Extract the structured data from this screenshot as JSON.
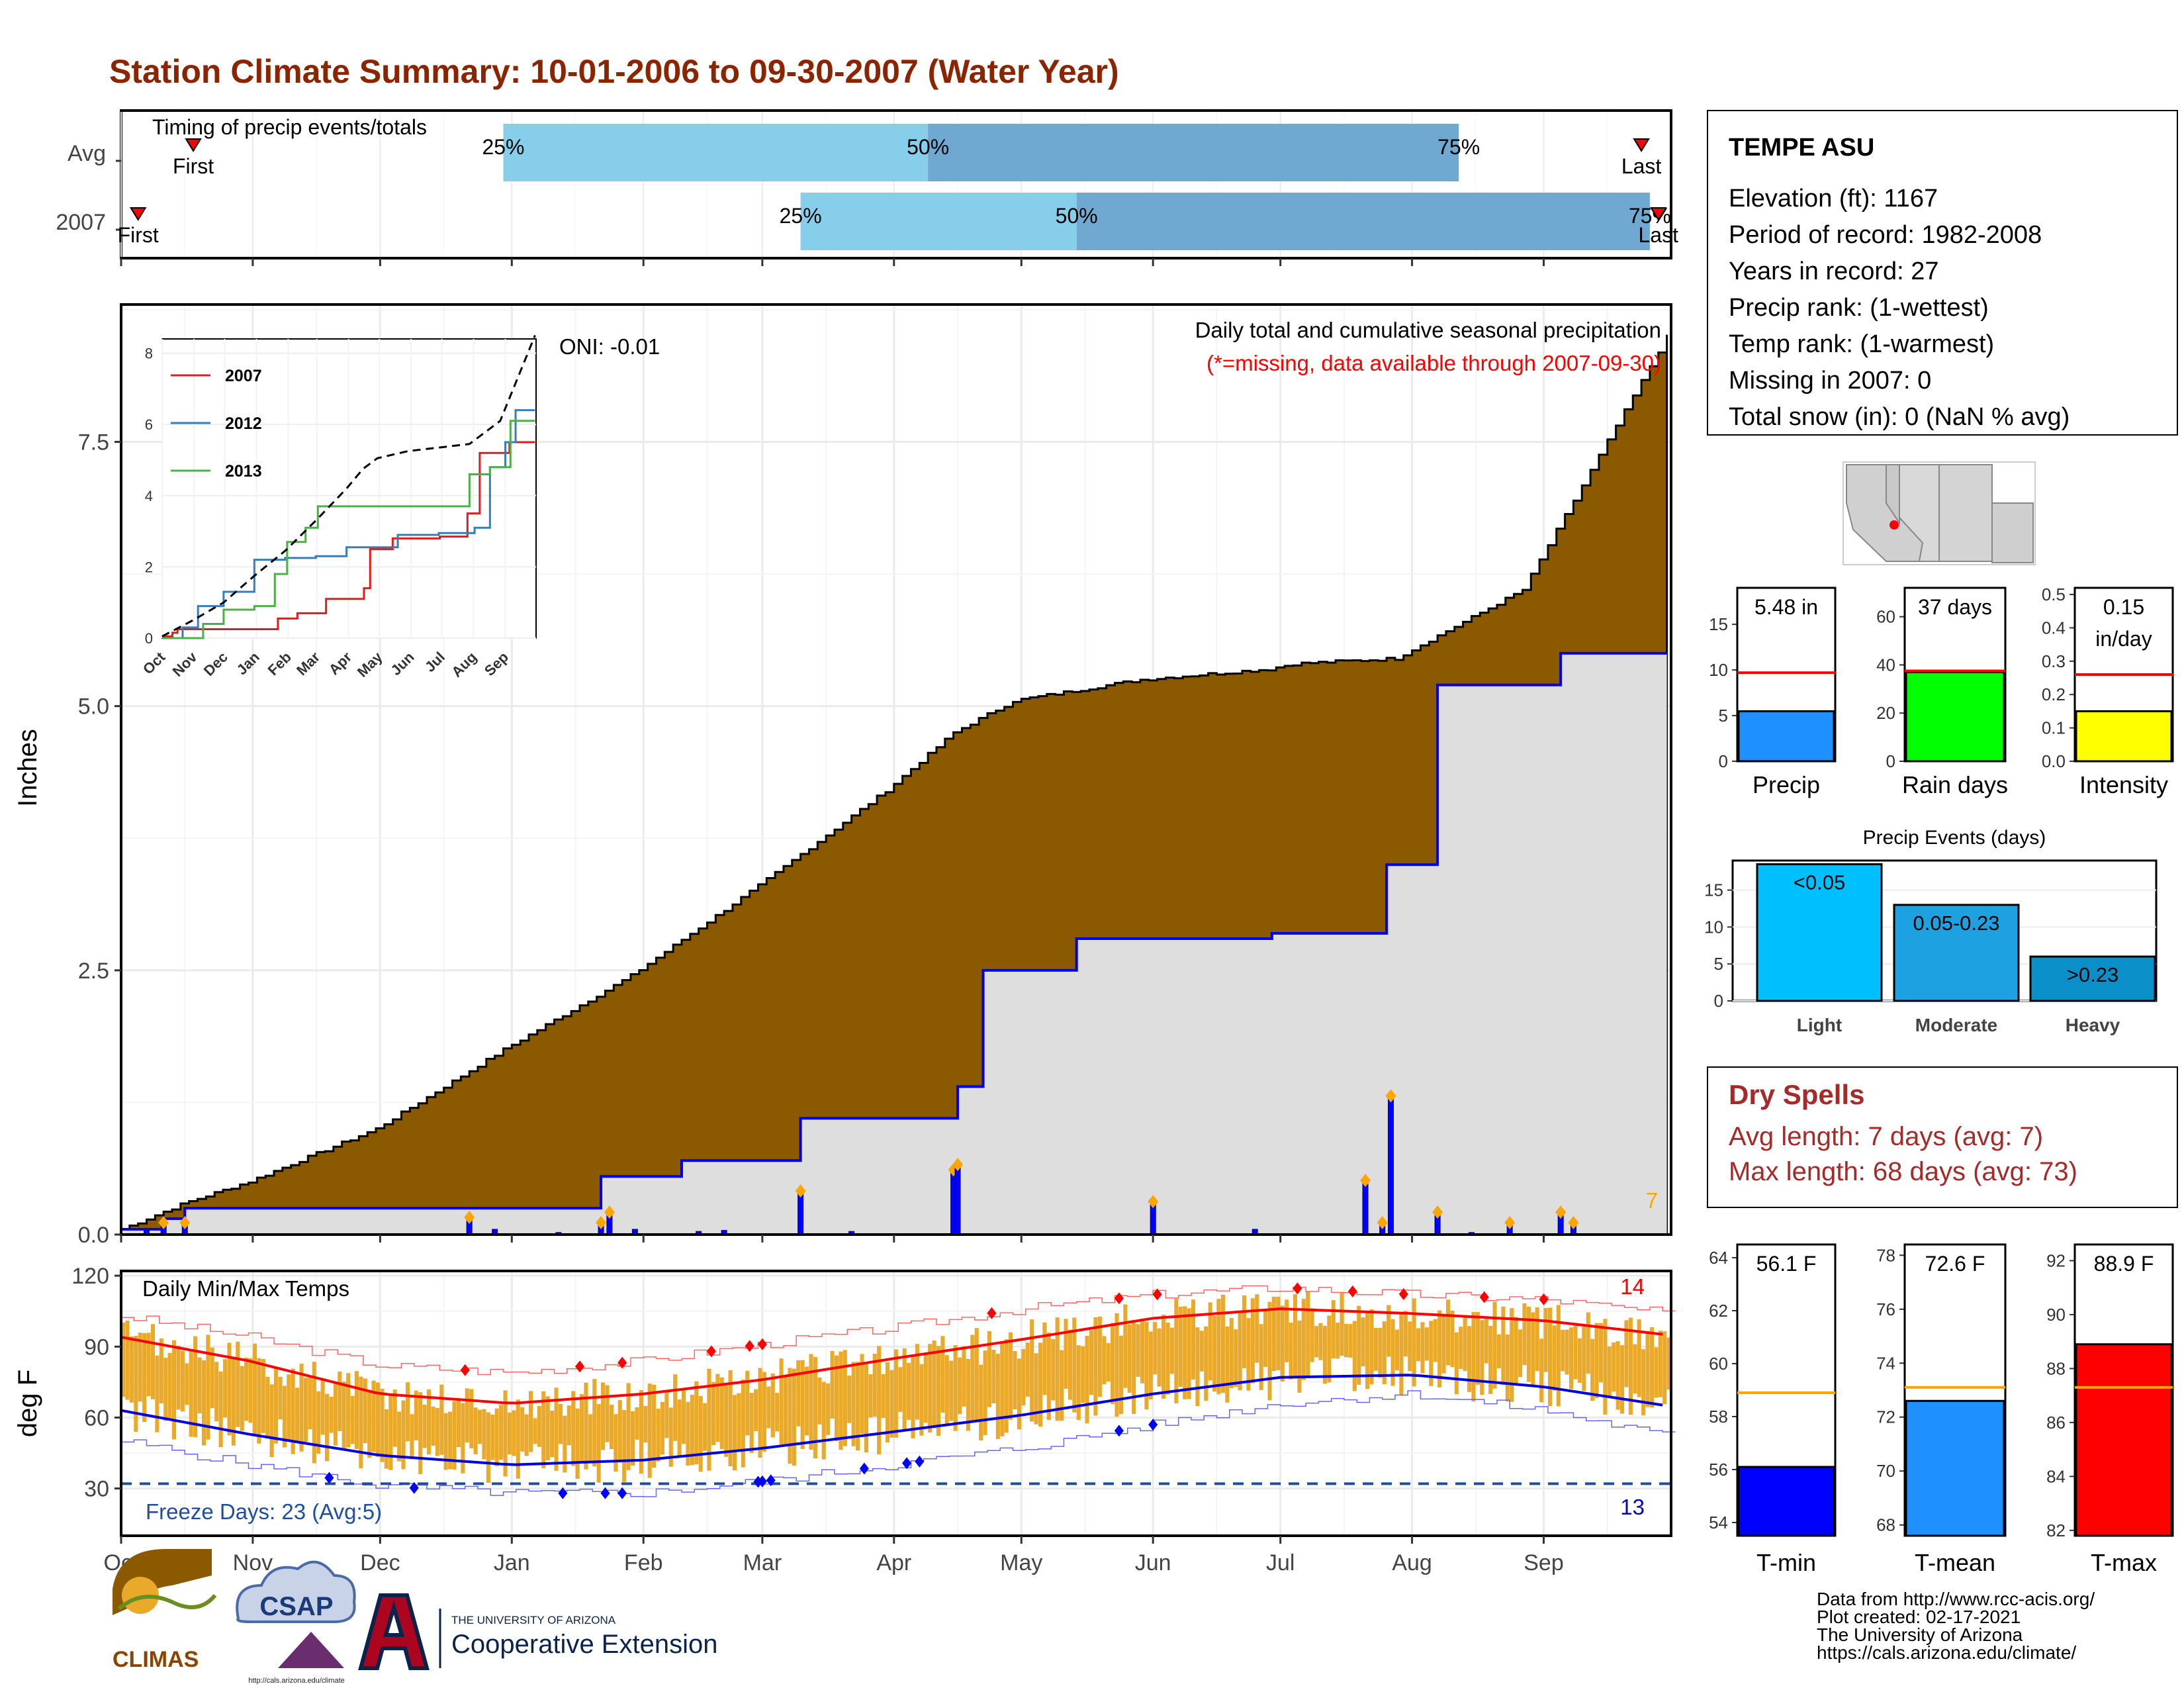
{
  "title": "Station Climate Summary: 10-01-2006 to 09-30-2007 (Water Year)",
  "timing": {
    "label": "Timing of precip events/totals",
    "rows": [
      "Avg",
      "2007"
    ],
    "avg": {
      "first_day": 17,
      "p25_day": 90,
      "p50_day": 190,
      "p75_day": 315,
      "last_day": 358
    },
    "y2007": {
      "first_day": 4,
      "p25_day": 160,
      "p50_day": 225,
      "p75_day": 360,
      "last_day": 362
    },
    "first_label": "First",
    "last_label": "Last",
    "p25_label": "25%",
    "p50_label": "50%",
    "p75_label": "75%"
  },
  "station": {
    "name": "TEMPE ASU",
    "lines": [
      "Elevation (ft): 1167",
      "Period of record: 1982-2008",
      "Years in record: 27",
      "Precip rank:  (1-wettest)",
      "Temp rank:  (1-warmest)",
      "Missing in 2007: 0",
      "Total snow (in): 0 (NaN % avg)"
    ]
  },
  "precip_panel": {
    "ylabel": "Inches",
    "yticks": [
      "0.0",
      "2.5",
      "5.0",
      "7.5"
    ],
    "caption": "Daily total and cumulative seasonal precipitation",
    "caption_note": "(*=missing, data available through 2007-09-30)",
    "oni": "ONI: -0.01",
    "corner_count": "7",
    "colors": {
      "avg_fill": "#8B5A00",
      "obs_fill": "#dedede",
      "obs_line": "#0000ee",
      "bar": "#0000ff",
      "marker": "#ffa500"
    }
  },
  "chart_data": [
    {
      "type": "area",
      "name": "cumulative_precip",
      "x_unit": "day of water year",
      "ylim": [
        0,
        8.8
      ],
      "series": [
        {
          "name": "avg_cumulative",
          "x": [
            0,
            15,
            30,
            60,
            90,
            120,
            150,
            180,
            196,
            210,
            240,
            270,
            276,
            300,
            330,
            364
          ],
          "values": [
            0.05,
            0.3,
            0.5,
            1.0,
            1.75,
            2.45,
            3.3,
            4.2,
            4.75,
            5.05,
            5.25,
            5.35,
            5.4,
            5.45,
            6.1,
            8.5
          ]
        },
        {
          "name": "obs_cumulative",
          "x": [
            0,
            10,
            15,
            88,
            113,
            132,
            160,
            197,
            203,
            225,
            245,
            271,
            298,
            310,
            339,
            364
          ],
          "values": [
            0.05,
            0.15,
            0.25,
            0.25,
            0.55,
            0.7,
            1.1,
            1.4,
            2.5,
            2.8,
            2.8,
            2.85,
            3.5,
            5.2,
            5.5,
            5.5
          ]
        },
        {
          "name": "daily_total",
          "x": [
            6,
            10,
            15,
            82,
            88,
            103,
            113,
            115,
            121,
            136,
            142,
            160,
            172,
            196,
            197,
            243,
            267,
            293,
            297,
            299,
            310,
            318,
            327,
            339,
            342
          ],
          "values": [
            0.05,
            0.1,
            0.1,
            0.15,
            0.05,
            0.02,
            0.1,
            0.2,
            0.05,
            0.03,
            0.04,
            0.4,
            0.03,
            0.6,
            0.65,
            0.3,
            0.05,
            0.5,
            0.1,
            1.3,
            0.2,
            0.02,
            0.1,
            0.2,
            0.1
          ]
        }
      ],
      "inset": {
        "xticks": [
          "Oct",
          "Nov",
          "Dec",
          "Jan",
          "Feb",
          "Mar",
          "Apr",
          "May",
          "Jun",
          "Jul",
          "Aug",
          "Sep"
        ],
        "yticks": [
          "0",
          "2",
          "4",
          "6",
          "8"
        ],
        "ylim": [
          0,
          8.4
        ],
        "series": [
          {
            "name": "2007",
            "color": "#e41a1c",
            "x": [
              0,
              10,
              15,
              88,
              113,
              132,
              160,
              197,
              203,
              225,
              245,
              271,
              298,
              310,
              339,
              364
            ],
            "values": [
              0.05,
              0.15,
              0.25,
              0.25,
              0.55,
              0.7,
              1.1,
              1.4,
              2.5,
              2.8,
              2.8,
              2.85,
              3.5,
              5.2,
              5.5,
              5.5
            ]
          },
          {
            "name": "2012",
            "color": "#377eb8",
            "x": [
              0,
              20,
              35,
              60,
              90,
              120,
              150,
              180,
              230,
              270,
              305,
              320,
              335,
              345,
              364
            ],
            "values": [
              0.0,
              0.3,
              0.9,
              1.3,
              2.2,
              2.25,
              2.3,
              2.55,
              2.9,
              2.95,
              3.1,
              4.8,
              5.5,
              6.4,
              6.4
            ]
          },
          {
            "name": "2013",
            "color": "#4daf4a",
            "x": [
              0,
              40,
              60,
              90,
              110,
              122,
              140,
              152,
              180,
              240,
              290,
              300,
              320,
              340,
              364
            ],
            "values": [
              0.0,
              0.4,
              0.8,
              0.9,
              1.8,
              2.7,
              3.1,
              3.7,
              3.7,
              3.7,
              3.7,
              4.6,
              4.8,
              6.1,
              6.1
            ]
          },
          {
            "name": "avg",
            "color": "#000000",
            "x": [
              0,
              30,
              60,
              90,
              120,
              150,
              180,
              196,
              210,
              240,
              270,
              300,
              330,
              364
            ],
            "values": [
              0.05,
              0.5,
              1.0,
              1.75,
              2.45,
              3.3,
              4.2,
              4.75,
              5.05,
              5.25,
              5.35,
              5.45,
              6.1,
              8.5
            ]
          }
        ]
      }
    },
    {
      "type": "bar",
      "name": "daily_temps",
      "title": "Daily Min/Max Temps",
      "ylabel": "deg F",
      "yticks": [
        "30",
        "60",
        "90",
        "120"
      ],
      "ylim": [
        10,
        122
      ],
      "x_months": [
        "Oct",
        "Nov",
        "Dec",
        "Jan",
        "Feb",
        "Mar",
        "Apr",
        "May",
        "Jun",
        "Jul",
        "Aug",
        "Sep"
      ],
      "freeze_line": 32,
      "freeze_label": "Freeze Days: 23 (Avg:5)",
      "record_high_count": "14",
      "record_low_count": "13",
      "normal_max": {
        "x": [
          0,
          30,
          61,
          92,
          123,
          151,
          182,
          212,
          243,
          273,
          304,
          335,
          364
        ],
        "values": [
          94,
          84,
          70,
          66,
          70,
          76,
          85,
          93,
          102,
          106,
          104,
          101,
          95
        ]
      },
      "normal_min": {
        "x": [
          0,
          30,
          61,
          92,
          123,
          151,
          182,
          212,
          243,
          273,
          304,
          335,
          364
        ],
        "values": [
          63,
          53,
          44,
          40,
          42,
          47,
          54,
          61,
          70,
          77,
          78,
          73,
          65
        ]
      },
      "record_max": {
        "x": [
          0,
          30,
          61,
          92,
          123,
          151,
          182,
          212,
          243,
          273,
          304,
          335,
          364
        ],
        "values": [
          103,
          94,
          82,
          79,
          84,
          91,
          98,
          106,
          112,
          115,
          112,
          110,
          104
        ]
      },
      "record_min": {
        "x": [
          0,
          30,
          61,
          92,
          123,
          151,
          182,
          212,
          243,
          273,
          304,
          335,
          364
        ],
        "values": [
          50,
          40,
          31,
          28,
          28,
          33,
          40,
          47,
          57,
          66,
          70,
          63,
          52
        ]
      },
      "colors": {
        "bar": "#E9AA2B",
        "normal_max": "#ff0000",
        "normal_min": "#0000dd",
        "record_max": "#ff6666",
        "record_min": "#6666ff",
        "freeze": "#1f4e9e"
      }
    },
    {
      "type": "bar",
      "name": "precip_totals",
      "categories": [
        "Precip",
        "Rain days",
        "Intensity"
      ],
      "panels": [
        {
          "label": "Precip",
          "value": 5.48,
          "avg": 9.7,
          "ylim": [
            0,
            19
          ],
          "yticks": [
            "0",
            "5",
            "10",
            "15"
          ],
          "text": "5.48 in",
          "color": "#1e90ff"
        },
        {
          "label": "Rain days",
          "value": 37,
          "avg": 37.5,
          "ylim": [
            0,
            72
          ],
          "yticks": [
            "0",
            "20",
            "40",
            "60"
          ],
          "text": "37 days",
          "color": "#00ff00"
        },
        {
          "label": "Intensity",
          "value": 0.15,
          "avg": 0.26,
          "ylim": [
            0,
            0.52
          ],
          "yticks": [
            "0.0",
            "0.1",
            "0.2",
            "0.3",
            "0.4",
            "0.5"
          ],
          "text": "0.15",
          "text2": "in/day",
          "color": "#ffff00"
        }
      ]
    },
    {
      "type": "bar",
      "name": "precip_events",
      "title": "Precip Events (days)",
      "categories": [
        "Light",
        "Moderate",
        "Heavy"
      ],
      "values": [
        18.5,
        13,
        6
      ],
      "labels": [
        "<0.05",
        "0.05-0.23",
        ">0.23"
      ],
      "ylim": [
        0,
        19
      ],
      "yticks": [
        "0",
        "5",
        "10",
        "15"
      ],
      "colors": [
        "#00bfff",
        "#1ea1e0",
        "#0a8fc9"
      ]
    },
    {
      "type": "bar",
      "name": "temp_means",
      "panels": [
        {
          "label": "T-min",
          "value": 56.1,
          "avg": 58.9,
          "ylim": [
            53.5,
            64.5
          ],
          "yticks": [
            "54",
            "56",
            "58",
            "60",
            "62",
            "64"
          ],
          "text": "56.1 F",
          "color": "#0000ff"
        },
        {
          "label": "T-mean",
          "value": 72.6,
          "avg": 73.1,
          "ylim": [
            67.6,
            78.4
          ],
          "yticks": [
            "68",
            "70",
            "72",
            "74",
            "76",
            "78"
          ],
          "text": "72.6 F",
          "color": "#1e90ff"
        },
        {
          "label": "T-max",
          "value": 88.9,
          "avg": 87.3,
          "ylim": [
            81.8,
            92.6
          ],
          "yticks": [
            "82",
            "84",
            "86",
            "88",
            "90",
            "92"
          ],
          "text": "88.9 F",
          "color": "#ff0000"
        }
      ]
    }
  ],
  "dry_spells": {
    "title": "Dry Spells",
    "avg_line": "Avg length: 7 days (avg: 7)",
    "max_line": "Max length: 68 days (avg: 73)"
  },
  "footer": {
    "lines": [
      "Data from http://www.rcc-acis.org/",
      "Plot created: 02-17-2021",
      "The University of Arizona",
      "https://cals.arizona.edu/climate/"
    ],
    "logo1": "CLIMAS",
    "logo2": "CSAP",
    "logo2_url": "http://cals.arizona.edu/climate",
    "ua_top": "THE UNIVERSITY OF ARIZONA",
    "ua_bottom": "Cooperative Extension"
  }
}
